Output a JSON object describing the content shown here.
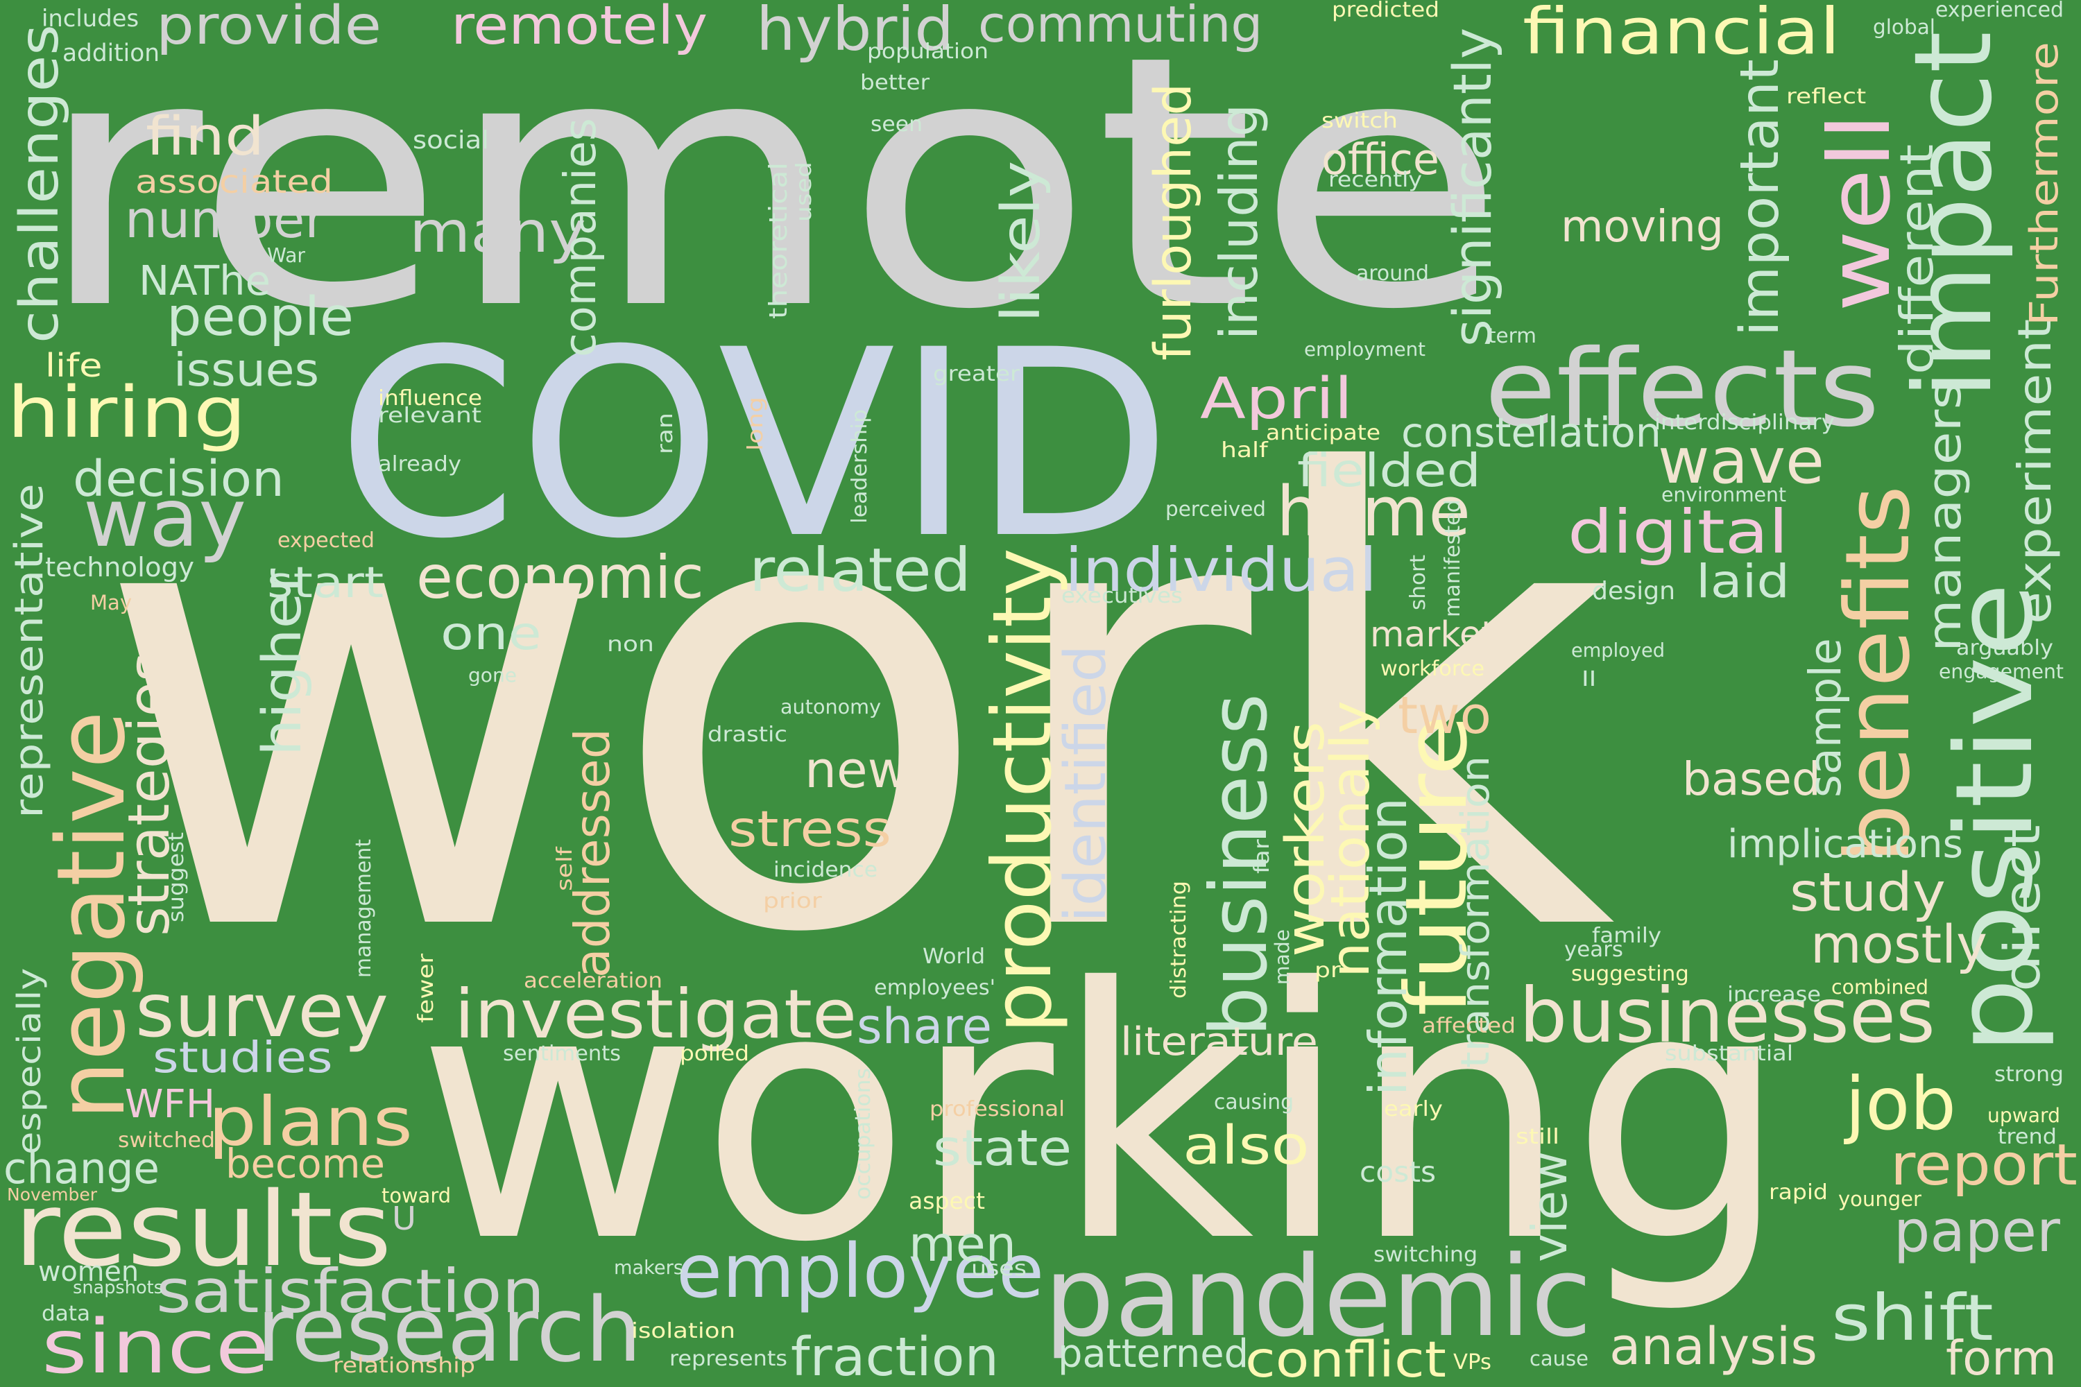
{
  "background_color": "#3d8f40",
  "palette": {
    "grey": "#d2d2d2",
    "cream": "#f1e4d0",
    "blue": "#ccd6e8",
    "mint": "#cde9d5",
    "pink": "#f2c9dc",
    "yellow": "#fdf8b4",
    "peach": "#f4cfa4",
    "lime": "#e8f3c2"
  },
  "words": [
    {
      "text": "work",
      "color": "cream"
    },
    {
      "text": "remote",
      "color": "grey"
    },
    {
      "text": "working",
      "color": "cream"
    },
    {
      "text": "COVID",
      "color": "blue"
    },
    {
      "text": "pandemic",
      "color": "grey"
    },
    {
      "text": "effects",
      "color": "grey"
    },
    {
      "text": "impact",
      "color": "mint"
    },
    {
      "text": "research",
      "color": "grey"
    },
    {
      "text": "results",
      "color": "cream"
    },
    {
      "text": "employee",
      "color": "blue"
    },
    {
      "text": "businesses",
      "color": "cream"
    },
    {
      "text": "negative",
      "color": "peach"
    },
    {
      "text": "positive",
      "color": "mint"
    },
    {
      "text": "productivity",
      "color": "yellow"
    },
    {
      "text": "home",
      "color": "cream"
    },
    {
      "text": "way",
      "color": "grey"
    },
    {
      "text": "financial",
      "color": "yellow"
    },
    {
      "text": "investigate",
      "color": "cream"
    },
    {
      "text": "survey",
      "color": "cream"
    },
    {
      "text": "economic",
      "color": "cream"
    },
    {
      "text": "benefits",
      "color": "peach"
    },
    {
      "text": "business",
      "color": "mint"
    },
    {
      "text": "future",
      "color": "yellow"
    },
    {
      "text": "hybrid",
      "color": "grey"
    },
    {
      "text": "commuting",
      "color": "grey"
    },
    {
      "text": "remotely",
      "color": "pink"
    },
    {
      "text": "provide",
      "color": "grey"
    },
    {
      "text": "job",
      "color": "yellow"
    },
    {
      "text": "digital",
      "color": "pink"
    },
    {
      "text": "wave",
      "color": "cream"
    },
    {
      "text": "plans",
      "color": "peach"
    },
    {
      "text": "since",
      "color": "pink"
    },
    {
      "text": "satisfaction",
      "color": "grey"
    },
    {
      "text": "shift",
      "color": "mint"
    },
    {
      "text": "analysis",
      "color": "cream"
    },
    {
      "text": "paper",
      "color": "grey"
    },
    {
      "text": "report",
      "color": "peach"
    },
    {
      "text": "April",
      "color": "pink"
    },
    {
      "text": "hiring",
      "color": "yellow"
    },
    {
      "text": "individual",
      "color": "blue"
    },
    {
      "text": "related",
      "color": "mint"
    },
    {
      "text": "well",
      "color": "pink"
    },
    {
      "text": "many",
      "color": "grey"
    },
    {
      "text": "number",
      "color": "grey"
    },
    {
      "text": "people",
      "color": "mint"
    },
    {
      "text": "find",
      "color": "cream"
    },
    {
      "text": "decision",
      "color": "mint"
    },
    {
      "text": "challenges",
      "color": "mint"
    },
    {
      "text": "issues",
      "color": "mint"
    },
    {
      "text": "strategies",
      "color": "cream"
    },
    {
      "text": "representative",
      "color": "mint"
    },
    {
      "text": "fraction",
      "color": "mint"
    },
    {
      "text": "conflict",
      "color": "yellow"
    },
    {
      "text": "form",
      "color": "cream"
    },
    {
      "text": "patterned",
      "color": "mint"
    },
    {
      "text": "study",
      "color": "cream"
    },
    {
      "text": "mostly",
      "color": "cream"
    },
    {
      "text": "new",
      "color": "cream"
    },
    {
      "text": "stress",
      "color": "peach"
    },
    {
      "text": "two",
      "color": "peach"
    },
    {
      "text": "based",
      "color": "cream"
    },
    {
      "text": "share",
      "color": "blue"
    },
    {
      "text": "state",
      "color": "mint"
    },
    {
      "text": "also",
      "color": "yellow"
    },
    {
      "text": "men",
      "color": "mint"
    },
    {
      "text": "view",
      "color": "mint"
    },
    {
      "text": "start",
      "color": "mint"
    },
    {
      "text": "one",
      "color": "mint"
    },
    {
      "text": "higher",
      "color": "mint"
    },
    {
      "text": "addressed",
      "color": "peach"
    },
    {
      "text": "companies",
      "color": "mint"
    },
    {
      "text": "likely",
      "color": "mint"
    },
    {
      "text": "furloughed",
      "color": "yellow"
    },
    {
      "text": "including",
      "color": "mint"
    },
    {
      "text": "significantly",
      "color": "mint"
    },
    {
      "text": "important",
      "color": "mint"
    },
    {
      "text": "different",
      "color": "mint"
    },
    {
      "text": "managers",
      "color": "mint"
    },
    {
      "text": "experiment",
      "color": "mint"
    },
    {
      "text": "Furthermore",
      "color": "peach"
    },
    {
      "text": "direct",
      "color": "mint"
    },
    {
      "text": "sample",
      "color": "mint"
    },
    {
      "text": "identified",
      "color": "blue"
    },
    {
      "text": "workers",
      "color": "yellow"
    },
    {
      "text": "nationally",
      "color": "yellow"
    },
    {
      "text": "information",
      "color": "mint"
    },
    {
      "text": "transformation",
      "color": "mint"
    },
    {
      "text": "office",
      "color": "cream"
    },
    {
      "text": "moving",
      "color": "cream"
    },
    {
      "text": "constellation",
      "color": "mint"
    },
    {
      "text": "fielded",
      "color": "mint"
    },
    {
      "text": "laid",
      "color": "mint"
    },
    {
      "text": "market",
      "color": "cream"
    },
    {
      "text": "literature",
      "color": "cream"
    },
    {
      "text": "implications",
      "color": "mint"
    },
    {
      "text": "change",
      "color": "mint"
    },
    {
      "text": "become",
      "color": "peach"
    },
    {
      "text": "studies",
      "color": "blue"
    },
    {
      "text": "WFH",
      "color": "pink"
    },
    {
      "text": "NAThe",
      "color": "mint"
    },
    {
      "text": "U",
      "color": "grey"
    },
    {
      "text": "women",
      "color": "mint"
    },
    {
      "text": "especially",
      "color": "mint"
    },
    {
      "text": "includes",
      "color": "mint"
    },
    {
      "text": "addition",
      "color": "mint"
    },
    {
      "text": "associated",
      "color": "peach"
    },
    {
      "text": "social",
      "color": "mint"
    },
    {
      "text": "War",
      "color": "mint"
    },
    {
      "text": "life",
      "color": "yellow"
    },
    {
      "text": "technology",
      "color": "mint"
    },
    {
      "text": "expected",
      "color": "peach"
    },
    {
      "text": "May",
      "color": "peach"
    },
    {
      "text": "influence",
      "color": "yellow"
    },
    {
      "text": "relevant",
      "color": "mint"
    },
    {
      "text": "already",
      "color": "mint"
    },
    {
      "text": "population",
      "color": "mint"
    },
    {
      "text": "better",
      "color": "mint"
    },
    {
      "text": "seen",
      "color": "mint"
    },
    {
      "text": "theoretical",
      "color": "mint"
    },
    {
      "text": "used",
      "color": "mint"
    },
    {
      "text": "predicted",
      "color": "yellow"
    },
    {
      "text": "switch",
      "color": "yellow"
    },
    {
      "text": "recently",
      "color": "mint"
    },
    {
      "text": "around",
      "color": "mint"
    },
    {
      "text": "term",
      "color": "mint"
    },
    {
      "text": "employment",
      "color": "mint"
    },
    {
      "text": "greater",
      "color": "mint"
    },
    {
      "text": "anticipate",
      "color": "yellow"
    },
    {
      "text": "half",
      "color": "yellow"
    },
    {
      "text": "perceived",
      "color": "mint"
    },
    {
      "text": "ran",
      "color": "mint"
    },
    {
      "text": "long",
      "color": "peach"
    },
    {
      "text": "leadership",
      "color": "mint"
    },
    {
      "text": "global",
      "color": "mint"
    },
    {
      "text": "experienced",
      "color": "mint"
    },
    {
      "text": "reflect",
      "color": "yellow"
    },
    {
      "text": "interdisciplinary",
      "color": "mint"
    },
    {
      "text": "environment",
      "color": "mint"
    },
    {
      "text": "manifested",
      "color": "mint"
    },
    {
      "text": "short",
      "color": "mint"
    },
    {
      "text": "design",
      "color": "mint"
    },
    {
      "text": "executives",
      "color": "mint"
    },
    {
      "text": "workforce",
      "color": "yellow"
    },
    {
      "text": "employed",
      "color": "mint"
    },
    {
      "text": "II",
      "color": "mint"
    },
    {
      "text": "arguably",
      "color": "mint"
    },
    {
      "text": "engagement",
      "color": "mint"
    },
    {
      "text": "non",
      "color": "mint"
    },
    {
      "text": "gone",
      "color": "mint"
    },
    {
      "text": "autonomy",
      "color": "mint"
    },
    {
      "text": "drastic",
      "color": "mint"
    },
    {
      "text": "incidence",
      "color": "mint"
    },
    {
      "text": "prior",
      "color": "peach"
    },
    {
      "text": "self",
      "color": "peach"
    },
    {
      "text": "management",
      "color": "mint"
    },
    {
      "text": "suggest",
      "color": "mint"
    },
    {
      "text": "fewer",
      "color": "yellow"
    },
    {
      "text": "far",
      "color": "mint"
    },
    {
      "text": "distracting",
      "color": "yellow"
    },
    {
      "text": "made",
      "color": "mint"
    },
    {
      "text": "pr",
      "color": "yellow"
    },
    {
      "text": "World",
      "color": "mint"
    },
    {
      "text": "employees'",
      "color": "mint"
    },
    {
      "text": "acceleration",
      "color": "peach"
    },
    {
      "text": "sentiments",
      "color": "mint"
    },
    {
      "text": "polled",
      "color": "yellow"
    },
    {
      "text": "professional",
      "color": "peach"
    },
    {
      "text": "occupations",
      "color": "mint"
    },
    {
      "text": "aspect",
      "color": "yellow"
    },
    {
      "text": "causing",
      "color": "mint"
    },
    {
      "text": "early",
      "color": "yellow"
    },
    {
      "text": "costs",
      "color": "mint"
    },
    {
      "text": "affected",
      "color": "peach"
    },
    {
      "text": "substantial",
      "color": "mint"
    },
    {
      "text": "still",
      "color": "yellow"
    },
    {
      "text": "rapid",
      "color": "yellow"
    },
    {
      "text": "younger",
      "color": "yellow"
    },
    {
      "text": "family",
      "color": "mint"
    },
    {
      "text": "years",
      "color": "mint"
    },
    {
      "text": "suggesting",
      "color": "yellow"
    },
    {
      "text": "increase",
      "color": "mint"
    },
    {
      "text": "combined",
      "color": "yellow"
    },
    {
      "text": "strong",
      "color": "mint"
    },
    {
      "text": "upward",
      "color": "yellow"
    },
    {
      "text": "trend",
      "color": "mint"
    },
    {
      "text": "switching",
      "color": "mint"
    },
    {
      "text": "uses",
      "color": "mint"
    },
    {
      "text": "makers",
      "color": "mint"
    },
    {
      "text": "snapshots",
      "color": "mint"
    },
    {
      "text": "data",
      "color": "mint"
    },
    {
      "text": "isolation",
      "color": "yellow"
    },
    {
      "text": "represents",
      "color": "mint"
    },
    {
      "text": "relationship",
      "color": "peach"
    },
    {
      "text": "switched",
      "color": "peach"
    },
    {
      "text": "November",
      "color": "peach"
    },
    {
      "text": "toward",
      "color": "yellow"
    },
    {
      "text": "cause",
      "color": "mint"
    },
    {
      "text": "VPs",
      "color": "yellow"
    }
  ]
}
